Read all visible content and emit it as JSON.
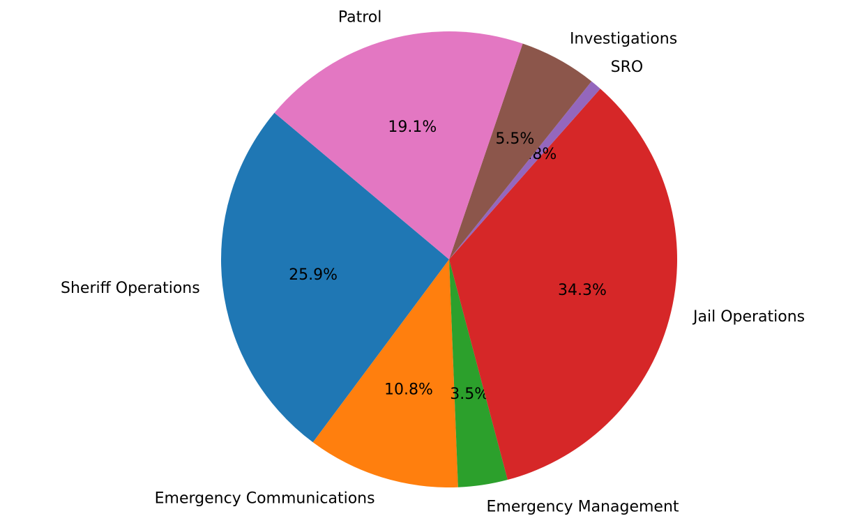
{
  "chart_data": {
    "type": "pie",
    "categories": [
      "Sheriff Operations",
      "Emergency Communications",
      "Emergency Management",
      "Jail Operations",
      "SRO",
      "Investigations",
      "Patrol"
    ],
    "values": [
      25.9,
      10.8,
      3.5,
      34.3,
      0.8,
      5.5,
      19.1
    ],
    "value_labels": [
      "25.9%",
      "10.8%",
      "3.5%",
      "34.3%",
      "0.8%",
      "5.5%",
      "19.1%"
    ],
    "colors": [
      "#1f77b4",
      "#ff7f0e",
      "#2ca02c",
      "#d62728",
      "#9467bd",
      "#8c564b",
      "#e377c2"
    ],
    "start_angle": 140
  }
}
